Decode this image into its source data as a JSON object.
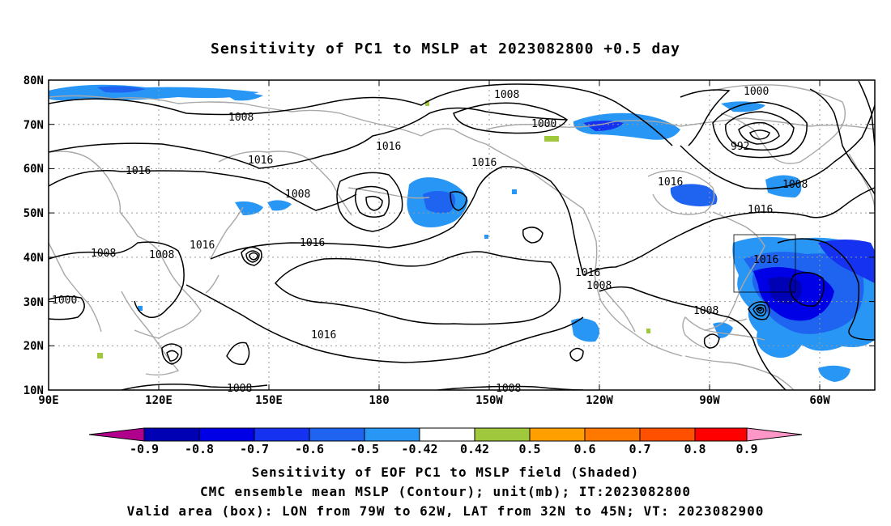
{
  "title": "Sensitivity of PC1 to MSLP at 2023082800 +0.5 day",
  "lat_labels": [
    "80N",
    "70N",
    "60N",
    "50N",
    "40N",
    "30N",
    "20N",
    "10N"
  ],
  "lon_labels": [
    "90E",
    "120E",
    "150E",
    "180",
    "150W",
    "120W",
    "90W",
    "60W"
  ],
  "contour_labels": [
    "1008",
    "1008",
    "1000",
    "1000",
    "992",
    "1016",
    "1016",
    "1016",
    "1008",
    "1016",
    "1016",
    "1008",
    "1016",
    "1008",
    "1016",
    "1008",
    "1016",
    "1008",
    "1016",
    "1016",
    "1008",
    "1016",
    "1000",
    "1008",
    "1008",
    "1008"
  ],
  "colorbar": {
    "labels": [
      "-0.9",
      "-0.8",
      "-0.7",
      "-0.6",
      "-0.5",
      "-0.42",
      "0.42",
      "0.5",
      "0.6",
      "0.7",
      "0.8",
      "0.9"
    ],
    "colors": [
      "#b0008c",
      "#0000b4",
      "#0000e6",
      "#1432f0",
      "#1e64f0",
      "#2896f5",
      "#00c8ff",
      "#ffffff",
      "#a0c83c",
      "#ffa000",
      "#ff7800",
      "#ff5000",
      "#ff2800",
      "#ff0000",
      "#ff96c8"
    ]
  },
  "footer": {
    "line1": "Sensitivity of EOF PC1 to MSLP field (Shaded)",
    "line2": "CMC ensemble mean MSLP (Contour); unit(mb); IT:2023082800",
    "line3": "Valid area (box): LON from 79W to 62W, LAT from 32N to 45N; VT: 2023082900"
  },
  "valid_box": {
    "lon_min": -79,
    "lon_max": -62,
    "lat_min": 32,
    "lat_max": 45
  }
}
